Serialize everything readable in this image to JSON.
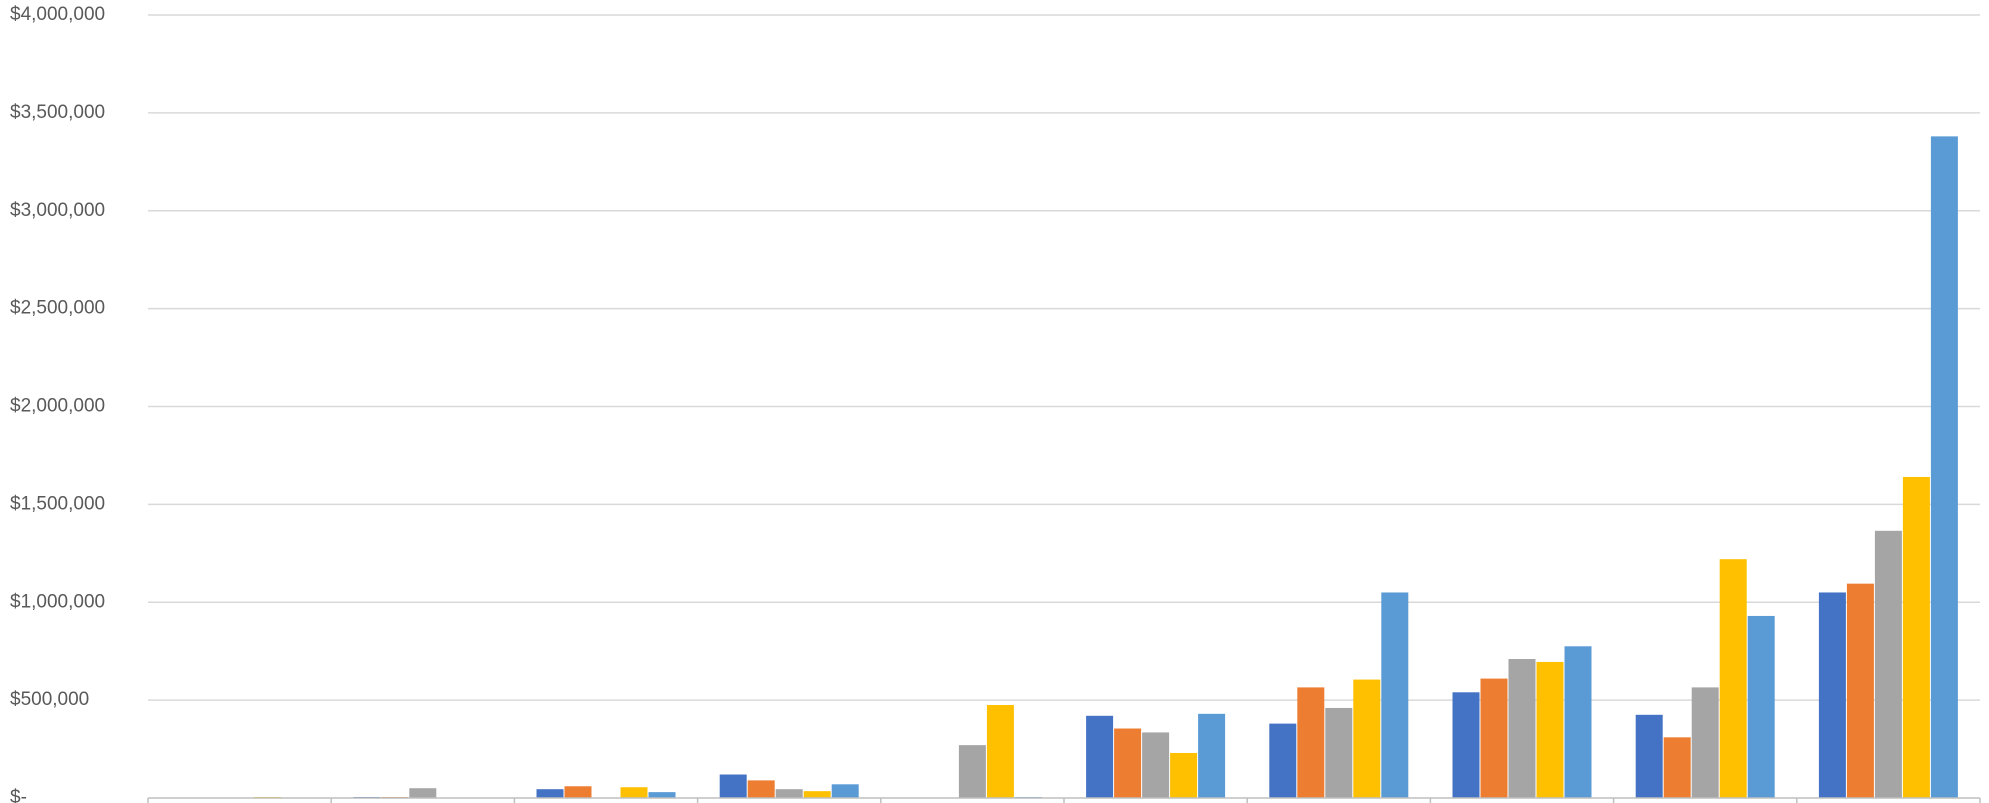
{
  "chart_data": {
    "type": "bar",
    "title": "",
    "xlabel": "",
    "ylabel": "",
    "ylim": [
      0,
      4000000
    ],
    "y_ticks": [
      0,
      500000,
      1000000,
      1500000,
      2000000,
      2500000,
      3000000,
      3500000,
      4000000
    ],
    "y_tick_labels": [
      "$-",
      "$500,000",
      "$1,000,000",
      "$1,500,000",
      "$2,000,000",
      "$2,500,000",
      "$3,000,000",
      "$3,500,000",
      "$4,000,000"
    ],
    "grid": true,
    "legend": "none",
    "categories": [
      "",
      "",
      "",
      "",
      "",
      "",
      "",
      "",
      "",
      ""
    ],
    "series": [
      {
        "color": "#4472c4",
        "values": [
          0,
          5000,
          45000,
          120000,
          0,
          420000,
          380000,
          540000,
          425000,
          1050000
        ]
      },
      {
        "color": "#ed7d31",
        "values": [
          0,
          5000,
          60000,
          90000,
          0,
          355000,
          565000,
          610000,
          310000,
          1095000
        ]
      },
      {
        "color": "#a5a5a5",
        "values": [
          0,
          50000,
          0,
          45000,
          270000,
          335000,
          460000,
          710000,
          565000,
          1365000
        ]
      },
      {
        "color": "#ffc000",
        "values": [
          5000,
          0,
          55000,
          35000,
          475000,
          230000,
          605000,
          695000,
          1220000,
          1640000
        ]
      },
      {
        "color": "#5b9bd5",
        "values": [
          0,
          0,
          30000,
          70000,
          5000,
          430000,
          1050000,
          775000,
          930000,
          3380000
        ]
      }
    ]
  }
}
